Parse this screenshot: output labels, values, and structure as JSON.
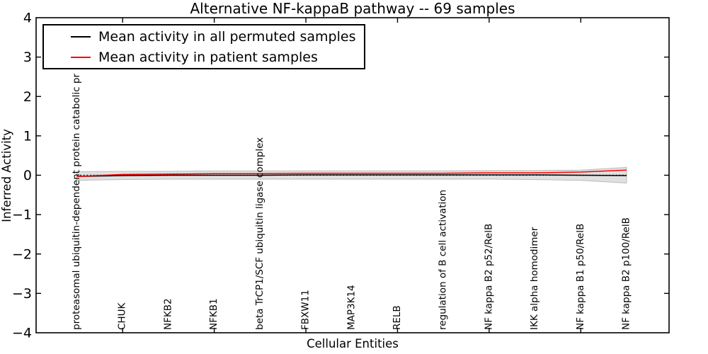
{
  "figure": {
    "background": "#ffffff",
    "frame_color": "#000000"
  },
  "chart_data": {
    "type": "line",
    "title": "Alternative NF-kappaB pathway -- 69 samples",
    "xlabel": "Cellular Entities",
    "ylabel": "Inferred Activity",
    "ylim": [
      -4,
      4
    ],
    "yticks": [
      4,
      3,
      2,
      1,
      0,
      -1,
      -2,
      -3,
      -4
    ],
    "ytick_labels": [
      "4",
      "3",
      "2",
      "1",
      "0",
      "−1",
      "−2",
      "−3",
      "−4"
    ],
    "xtick_indices": [
      1,
      3,
      5,
      7,
      9,
      11
    ],
    "grid": false,
    "legend_position": "upper left",
    "categories": [
      "proteasomal ubiquitin-dependent protein catabolic pr",
      "CHUK",
      "NFKB2",
      "NFKB1",
      "beta TrCP1/SCF ubiquitin ligase complex",
      "FBXW11",
      "MAP3K14",
      "RELB",
      "regulation of B cell activation",
      "NF kappa B2 p52/RelB",
      "IKK alpha homodimer",
      "NF kappa B1 p50/RelB",
      "NF kappa B2 p100/RelB"
    ],
    "series": [
      {
        "name": "Mean activity in all permuted samples",
        "color": "#000000",
        "style": "solid",
        "values": [
          -0.03,
          -0.01,
          0.0,
          0.0,
          0.0,
          0.01,
          0.01,
          0.01,
          0.01,
          0.01,
          0.01,
          0.0,
          -0.01
        ]
      },
      {
        "name": "Mean activity in patient samples",
        "color": "#ff0000",
        "style": "solid",
        "values": [
          -0.03,
          0.02,
          0.03,
          0.04,
          0.04,
          0.05,
          0.05,
          0.05,
          0.05,
          0.06,
          0.06,
          0.08,
          0.13
        ]
      }
    ],
    "band": {
      "name": "permuted-samples-confidence-band",
      "color": "#bbbbbb",
      "edge_color": "#999999",
      "upper": [
        0.09,
        0.1,
        0.1,
        0.11,
        0.11,
        0.11,
        0.11,
        0.11,
        0.11,
        0.12,
        0.12,
        0.13,
        0.2
      ],
      "lower": [
        -0.13,
        -0.11,
        -0.1,
        -0.1,
        -0.1,
        -0.1,
        -0.1,
        -0.1,
        -0.1,
        -0.1,
        -0.11,
        -0.13,
        -0.2
      ]
    },
    "zero_line": {
      "value": 0,
      "style": "dotted",
      "color": "#000000"
    }
  }
}
